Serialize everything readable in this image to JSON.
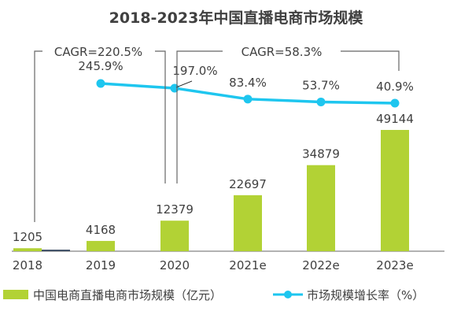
{
  "chart_data": {
    "type": "bar+line",
    "title": "2018-2023年中国直播电商市场规模",
    "categories": [
      "2018",
      "2019",
      "2020",
      "2021e",
      "2022e",
      "2023e"
    ],
    "series": [
      {
        "name": "中国电商直播电商市场规模（亿元）",
        "type": "bar",
        "color": "#b2d235",
        "values": [
          1205,
          4168,
          12379,
          22697,
          34879,
          49144
        ]
      },
      {
        "name": "市场规模增长率（%）",
        "type": "line",
        "color": "#1ec6ef",
        "values": [
          null,
          245.9,
          197.0,
          83.4,
          53.7,
          40.9
        ],
        "labels": [
          "",
          "245.9%",
          "197.0%",
          "83.4%",
          "53.7%",
          "40.9%"
        ]
      }
    ],
    "annotations": [
      {
        "text": "CAGR=220.5%",
        "from": "2018",
        "to": "2020"
      },
      {
        "text": "CAGR=58.3%",
        "from": "2020",
        "to": "2023e"
      }
    ],
    "grid": false,
    "legend": "bottom"
  }
}
